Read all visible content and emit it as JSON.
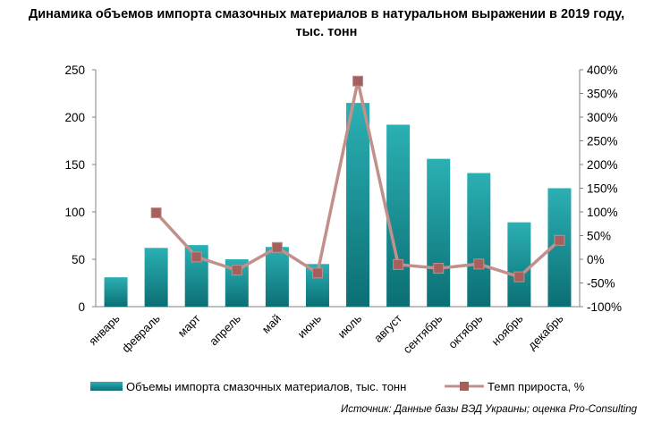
{
  "title_line1": "Динамика объемов импорта смазочных материалов в натуральном выражении в 2019 году,",
  "title_line2": "тыс. тонн",
  "source": "Источник: Данные базы ВЭД Украины; оценка Pro-Consulting",
  "colors": {
    "bar_top": "#2bb0b4",
    "bar_bottom": "#0b6f74",
    "line": "#c38f8b",
    "marker": "#a4605c"
  },
  "chart_data": {
    "type": "bar",
    "categories": [
      "январь",
      "февраль",
      "март",
      "апрель",
      "май",
      "июнь",
      "июль",
      "август",
      "сентябрь",
      "октябрь",
      "ноябрь",
      "декабрь"
    ],
    "series": [
      {
        "name": "Объемы импорта смазочных материалов, тыс. тонн",
        "type": "bar",
        "axis": "left",
        "values": [
          31,
          62,
          65,
          50,
          63,
          45,
          215,
          192,
          156,
          141,
          89,
          125
        ]
      },
      {
        "name": "Темп прироста, %",
        "type": "line",
        "axis": "right",
        "values": [
          null,
          98,
          5,
          -23,
          25,
          -29,
          376,
          -11,
          -19,
          -10,
          -37,
          40
        ]
      }
    ],
    "ylim_left": [
      0,
      250
    ],
    "yticks_left": [
      "0",
      "50",
      "100",
      "150",
      "200",
      "250"
    ],
    "ylim_right": [
      -100,
      400
    ],
    "yticks_right": [
      "-100%",
      "-50%",
      "0%",
      "50%",
      "100%",
      "150%",
      "200%",
      "250%",
      "300%",
      "350%",
      "400%"
    ],
    "grid": false,
    "legend_position": "bottom"
  }
}
